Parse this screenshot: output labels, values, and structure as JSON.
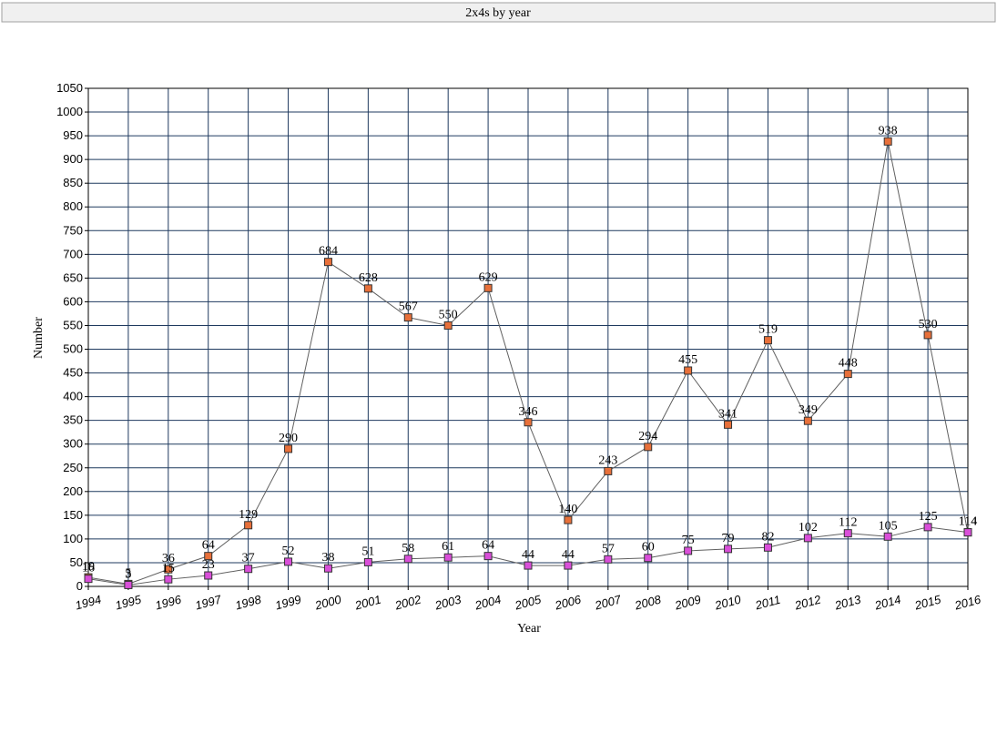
{
  "chart_data": {
    "type": "line",
    "title": "2x4s by year",
    "x_label": "Year",
    "y_label": "Number",
    "x": [
      1994,
      1995,
      1996,
      1997,
      1998,
      1999,
      2000,
      2001,
      2002,
      2003,
      2004,
      2005,
      2006,
      2007,
      2008,
      2009,
      2010,
      2011,
      2012,
      2013,
      2014,
      2015,
      2016
    ],
    "series": [
      {
        "color": "#e8703a",
        "values": [
          19,
          5,
          36,
          64,
          129,
          290,
          684,
          628,
          567,
          550,
          629,
          346,
          140,
          243,
          294,
          455,
          341,
          519,
          349,
          448,
          938,
          530,
          114
        ]
      },
      {
        "color": "#d94fd9",
        "values": [
          16,
          3,
          15,
          23,
          37,
          52,
          38,
          51,
          58,
          61,
          64,
          44,
          44,
          57,
          60,
          75,
          79,
          82,
          102,
          112,
          105,
          125,
          114
        ]
      }
    ],
    "line_color": "#606060",
    "grid_color": "#1f3a5f",
    "grid": true,
    "xlim": [
      1994,
      2016
    ],
    "xticks": [
      1994,
      1995,
      1996,
      1997,
      1998,
      1999,
      2000,
      2001,
      2002,
      2003,
      2004,
      2005,
      2006,
      2007,
      2008,
      2009,
      2010,
      2011,
      2012,
      2013,
      2014,
      2015,
      2016
    ],
    "ylim": [
      0,
      1050
    ],
    "yticks": [
      0,
      50,
      100,
      150,
      200,
      250,
      300,
      350,
      400,
      450,
      500,
      550,
      600,
      650,
      700,
      750,
      800,
      850,
      900,
      950,
      1000,
      1050
    ]
  }
}
